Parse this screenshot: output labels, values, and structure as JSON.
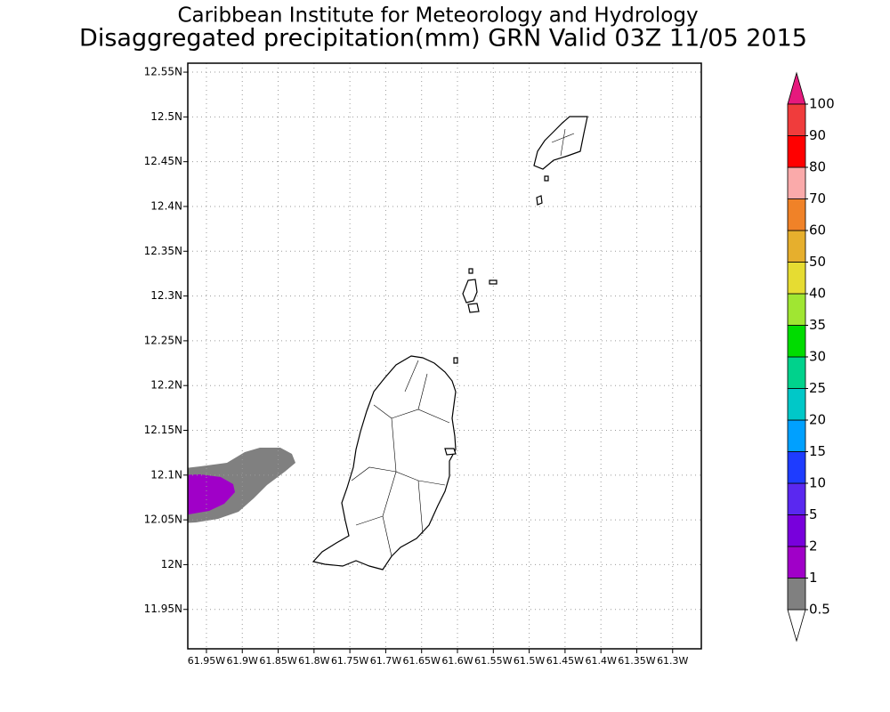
{
  "map": {
    "title": "Caribbean Institute for Meteorology and Hydrology",
    "subtitle": "Disaggregated precipitation(mm) GRN Valid 03Z 11/05 2015",
    "lonlim": [
      61.976,
      61.26
    ],
    "latlim": [
      11.906,
      12.56
    ],
    "lon_ticks": [
      {
        "value": 61.95,
        "label": "61.95W"
      },
      {
        "value": 61.9,
        "label": "61.9W"
      },
      {
        "value": 61.85,
        "label": "61.85W"
      },
      {
        "value": 61.8,
        "label": "61.8W"
      },
      {
        "value": 61.75,
        "label": "61.75W"
      },
      {
        "value": 61.7,
        "label": "61.7W"
      },
      {
        "value": 61.65,
        "label": "61.65W"
      },
      {
        "value": 61.6,
        "label": "61.6W"
      },
      {
        "value": 61.55,
        "label": "61.55W"
      },
      {
        "value": 61.5,
        "label": "61.5W"
      },
      {
        "value": 61.45,
        "label": "61.45W"
      },
      {
        "value": 61.4,
        "label": "61.4W"
      },
      {
        "value": 61.35,
        "label": "61.35W"
      },
      {
        "value": 61.3,
        "label": "61.3W"
      }
    ],
    "lat_ticks": [
      {
        "value": 12.55,
        "label": "12.55N"
      },
      {
        "value": 12.5,
        "label": "12.5N"
      },
      {
        "value": 12.45,
        "label": "12.45N"
      },
      {
        "value": 12.4,
        "label": "12.4N"
      },
      {
        "value": 12.35,
        "label": "12.35N"
      },
      {
        "value": 12.3,
        "label": "12.3N"
      },
      {
        "value": 12.25,
        "label": "12.25N"
      },
      {
        "value": 12.2,
        "label": "12.2N"
      },
      {
        "value": 12.15,
        "label": "12.15N"
      },
      {
        "value": 12.1,
        "label": "12.1N"
      },
      {
        "value": 12.05,
        "label": "12.05N"
      },
      {
        "value": 12,
        "label": "12N"
      },
      {
        "value": 11.95,
        "label": "11.95N"
      }
    ],
    "grid": true
  },
  "colorbar": {
    "levels": [
      0.5,
      1,
      2,
      5,
      10,
      15,
      20,
      25,
      30,
      35,
      40,
      50,
      60,
      70,
      80,
      90,
      100
    ],
    "colors": [
      "#808080",
      "#a000c8",
      "#7800dc",
      "#5a28f0",
      "#1e3cff",
      "#00a0ff",
      "#00c8c8",
      "#00d28c",
      "#00dc00",
      "#a0e632",
      "#e6dc32",
      "#e6af2d",
      "#f08228",
      "#faaaaa",
      "#ff0000",
      "#f03c3c"
    ],
    "over_color": "#e6197d",
    "under_color": "#ffffff"
  }
}
